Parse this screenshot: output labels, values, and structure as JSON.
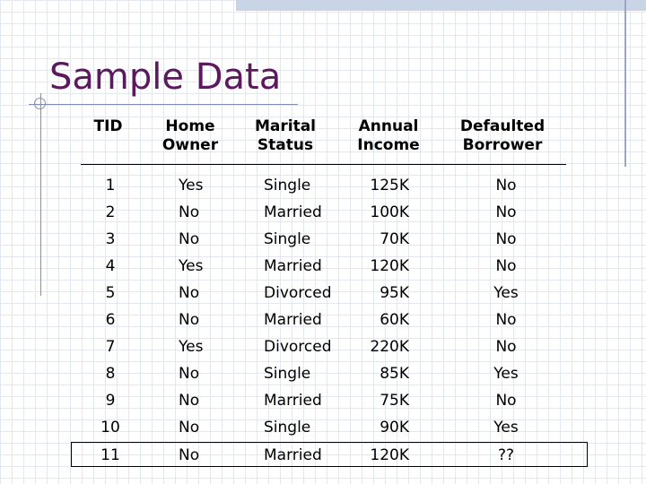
{
  "slide": {
    "title": "Sample Data"
  },
  "table": {
    "headers": {
      "tid": "TID",
      "home_owner": [
        "Home",
        "Owner"
      ],
      "marital_status": [
        "Marital",
        "Status"
      ],
      "annual_income": [
        "Annual",
        "Income"
      ],
      "defaulted_borrower": [
        "Defaulted",
        "Borrower"
      ]
    },
    "rows": [
      {
        "tid": "1",
        "home_owner": "Yes",
        "marital_status": "Single",
        "annual_income": "125K",
        "defaulted_borrower": "No"
      },
      {
        "tid": "2",
        "home_owner": "No",
        "marital_status": "Married",
        "annual_income": "100K",
        "defaulted_borrower": "No"
      },
      {
        "tid": "3",
        "home_owner": "No",
        "marital_status": "Single",
        "annual_income": "70K",
        "defaulted_borrower": "No"
      },
      {
        "tid": "4",
        "home_owner": "Yes",
        "marital_status": "Married",
        "annual_income": "120K",
        "defaulted_borrower": "No"
      },
      {
        "tid": "5",
        "home_owner": "No",
        "marital_status": "Divorced",
        "annual_income": "95K",
        "defaulted_borrower": "Yes"
      },
      {
        "tid": "6",
        "home_owner": "No",
        "marital_status": "Married",
        "annual_income": "60K",
        "defaulted_borrower": "No"
      },
      {
        "tid": "7",
        "home_owner": "Yes",
        "marital_status": "Divorced",
        "annual_income": "220K",
        "defaulted_borrower": "No"
      },
      {
        "tid": "8",
        "home_owner": "No",
        "marital_status": "Single",
        "annual_income": "85K",
        "defaulted_borrower": "Yes"
      },
      {
        "tid": "9",
        "home_owner": "No",
        "marital_status": "Married",
        "annual_income": "75K",
        "defaulted_borrower": "No"
      },
      {
        "tid": "10",
        "home_owner": "No",
        "marital_status": "Single",
        "annual_income": "90K",
        "defaulted_borrower": "Yes"
      },
      {
        "tid": "11",
        "home_owner": "No",
        "marital_status": "Married",
        "annual_income": "120K",
        "defaulted_borrower": "??"
      }
    ]
  },
  "theme": {
    "title_color": "#5b1a5e",
    "accent_band": "#c9d4e6",
    "grid_color": "#e3e7ee"
  }
}
